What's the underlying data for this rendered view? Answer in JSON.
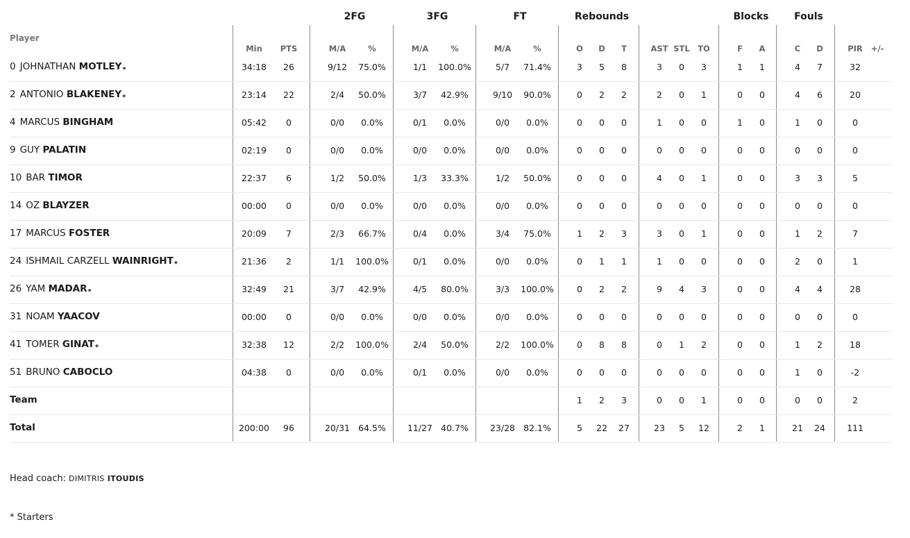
{
  "groups": [
    "2FG",
    "3FG",
    "FT",
    "Rebounds",
    "Blocks",
    "Fouls"
  ],
  "player_header": "Player",
  "subheaders": [
    "Min",
    "PTS",
    "M/A",
    "%",
    "M/A",
    "%",
    "M/A",
    "%",
    "O",
    "D",
    "T",
    "AST",
    "STL",
    "TO",
    "F",
    "A",
    "C",
    "D",
    "PIR",
    "+/-"
  ],
  "players": [
    {
      "num": "0",
      "first": "JOHNATHAN",
      "last": "MOTLEY",
      "starter": true,
      "stats": [
        "34:18",
        "26",
        "9/12",
        "75.0%",
        "1/1",
        "100.0%",
        "5/7",
        "71.4%",
        "3",
        "5",
        "8",
        "3",
        "0",
        "3",
        "1",
        "1",
        "4",
        "7",
        "32",
        ""
      ]
    },
    {
      "num": "2",
      "first": "ANTONIO",
      "last": "BLAKENEY",
      "starter": true,
      "stats": [
        "23:14",
        "22",
        "2/4",
        "50.0%",
        "3/7",
        "42.9%",
        "9/10",
        "90.0%",
        "0",
        "2",
        "2",
        "2",
        "0",
        "1",
        "0",
        "0",
        "4",
        "6",
        "20",
        ""
      ]
    },
    {
      "num": "4",
      "first": "MARCUS",
      "last": "BINGHAM",
      "starter": false,
      "stats": [
        "05:42",
        "0",
        "0/0",
        "0.0%",
        "0/1",
        "0.0%",
        "0/0",
        "0.0%",
        "0",
        "0",
        "0",
        "1",
        "0",
        "0",
        "1",
        "0",
        "1",
        "0",
        "0",
        ""
      ]
    },
    {
      "num": "9",
      "first": "GUY",
      "last": "PALATIN",
      "starter": false,
      "stats": [
        "02:19",
        "0",
        "0/0",
        "0.0%",
        "0/0",
        "0.0%",
        "0/0",
        "0.0%",
        "0",
        "0",
        "0",
        "0",
        "0",
        "0",
        "0",
        "0",
        "0",
        "0",
        "0",
        ""
      ]
    },
    {
      "num": "10",
      "first": "BAR",
      "last": "TIMOR",
      "starter": false,
      "stats": [
        "22:37",
        "6",
        "1/2",
        "50.0%",
        "1/3",
        "33.3%",
        "1/2",
        "50.0%",
        "0",
        "0",
        "0",
        "4",
        "0",
        "1",
        "0",
        "0",
        "3",
        "3",
        "5",
        ""
      ]
    },
    {
      "num": "14",
      "first": "OZ",
      "last": "BLAYZER",
      "starter": false,
      "stats": [
        "00:00",
        "0",
        "0/0",
        "0.0%",
        "0/0",
        "0.0%",
        "0/0",
        "0.0%",
        "0",
        "0",
        "0",
        "0",
        "0",
        "0",
        "0",
        "0",
        "0",
        "0",
        "0",
        ""
      ]
    },
    {
      "num": "17",
      "first": "MARCUS",
      "last": "FOSTER",
      "starter": false,
      "stats": [
        "20:09",
        "7",
        "2/3",
        "66.7%",
        "0/4",
        "0.0%",
        "3/4",
        "75.0%",
        "1",
        "2",
        "3",
        "3",
        "0",
        "1",
        "0",
        "0",
        "1",
        "2",
        "7",
        ""
      ]
    },
    {
      "num": "24",
      "first": "ISHMAIL CARZELL",
      "last": "WAINRIGHT",
      "starter": true,
      "stats": [
        "21:36",
        "2",
        "1/1",
        "100.0%",
        "0/1",
        "0.0%",
        "0/0",
        "0.0%",
        "0",
        "1",
        "1",
        "1",
        "0",
        "0",
        "0",
        "0",
        "2",
        "0",
        "1",
        ""
      ]
    },
    {
      "num": "26",
      "first": "YAM",
      "last": "MADAR",
      "starter": true,
      "stats": [
        "32:49",
        "21",
        "3/7",
        "42.9%",
        "4/5",
        "80.0%",
        "3/3",
        "100.0%",
        "0",
        "2",
        "2",
        "9",
        "4",
        "3",
        "0",
        "0",
        "4",
        "4",
        "28",
        ""
      ]
    },
    {
      "num": "31",
      "first": "NOAM",
      "last": "YAACOV",
      "starter": false,
      "stats": [
        "00:00",
        "0",
        "0/0",
        "0.0%",
        "0/0",
        "0.0%",
        "0/0",
        "0.0%",
        "0",
        "0",
        "0",
        "0",
        "0",
        "0",
        "0",
        "0",
        "0",
        "0",
        "0",
        ""
      ]
    },
    {
      "num": "41",
      "first": "TOMER",
      "last": "GINAT",
      "starter": true,
      "stats": [
        "32:38",
        "12",
        "2/2",
        "100.0%",
        "2/4",
        "50.0%",
        "2/2",
        "100.0%",
        "0",
        "8",
        "8",
        "0",
        "1",
        "2",
        "0",
        "0",
        "1",
        "2",
        "18",
        ""
      ]
    },
    {
      "num": "51",
      "first": "BRUNO",
      "last": "CABOCLO",
      "starter": false,
      "stats": [
        "04:38",
        "0",
        "0/0",
        "0.0%",
        "0/1",
        "0.0%",
        "0/0",
        "0.0%",
        "0",
        "0",
        "0",
        "0",
        "0",
        "0",
        "0",
        "0",
        "1",
        "0",
        "-2",
        ""
      ]
    }
  ],
  "team_row": {
    "label": "Team",
    "stats": [
      "",
      "",
      "",
      "",
      "",
      "",
      "",
      "",
      "1",
      "2",
      "3",
      "0",
      "0",
      "1",
      "0",
      "0",
      "0",
      "0",
      "2",
      ""
    ]
  },
  "total_row": {
    "label": "Total",
    "stats": [
      "200:00",
      "96",
      "20/31",
      "64.5%",
      "11/27",
      "40.7%",
      "23/28",
      "82.1%",
      "5",
      "22",
      "27",
      "23",
      "5",
      "12",
      "2",
      "1",
      "21",
      "24",
      "111",
      ""
    ]
  },
  "coach": {
    "label": "Head coach:",
    "first": "DIMITRIS",
    "last": "ITOUDIS"
  },
  "starters_note": "* Starters",
  "starter_mark": "*"
}
